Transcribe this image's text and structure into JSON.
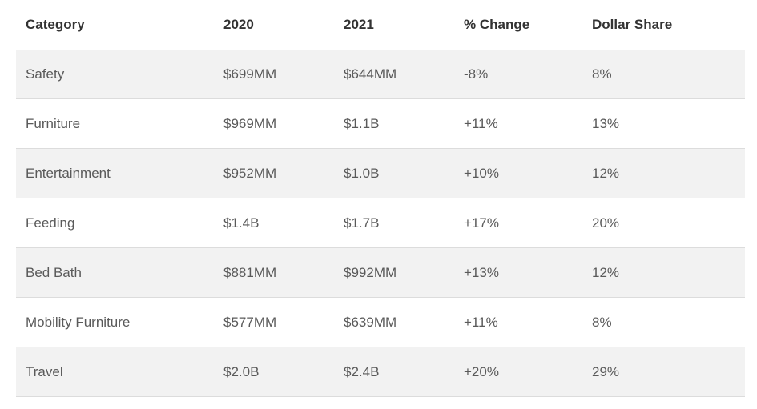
{
  "chart_data": {
    "type": "table",
    "columns": [
      "Category",
      "2020",
      "2021",
      "% Change",
      "Dollar Share"
    ],
    "rows": [
      [
        "Safety",
        "$699MM",
        "$644MM",
        "-8%",
        "8%"
      ],
      [
        "Furniture",
        "$969MM",
        "$1.1B",
        "+11%",
        "13%"
      ],
      [
        "Entertainment",
        "$952MM",
        "$1.0B",
        "+10%",
        "12%"
      ],
      [
        "Feeding",
        "$1.4B",
        "$1.7B",
        "+17%",
        "20%"
      ],
      [
        "Bed Bath",
        "$881MM",
        "$992MM",
        "+13%",
        "12%"
      ],
      [
        "Mobility Furniture",
        "$577MM",
        "$639MM",
        "+11%",
        "8%"
      ],
      [
        "Travel",
        "$2.0B",
        "$2.4B",
        "+20%",
        "29%"
      ]
    ]
  },
  "colors": {
    "header_text": "#333333",
    "body_text": "#5a5a5a",
    "stripe": "#f2f2f2",
    "divider": "#dcdcdc"
  }
}
